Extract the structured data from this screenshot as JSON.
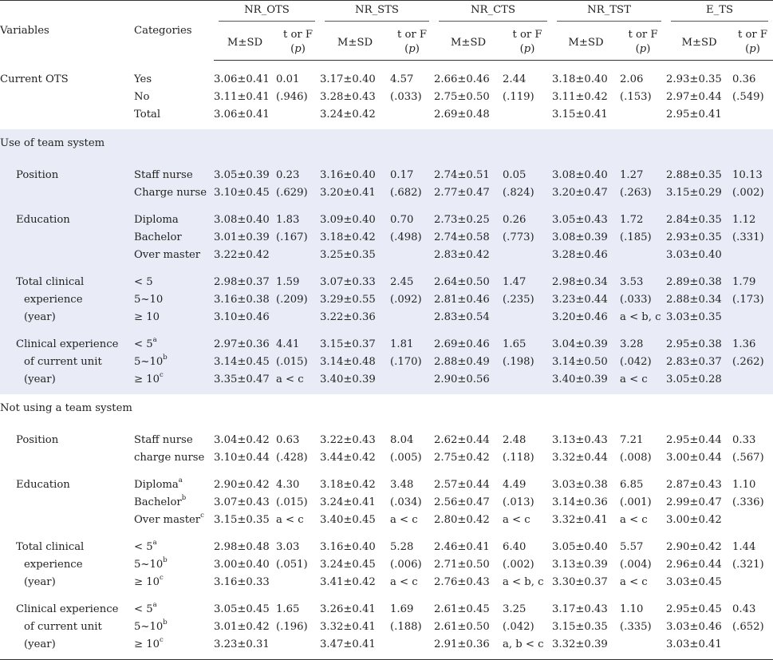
{
  "header": {
    "variables": "Variables",
    "categories": "Categories",
    "groups": [
      "NR_OTS",
      "NR_STS",
      "NR_CTS",
      "NR_TST",
      "E_TS"
    ],
    "msd": "M±SD",
    "tf_line1": "t or F",
    "tf_open": "(",
    "tf_p": "p",
    "tf_close": ")"
  },
  "sections": [
    {
      "title": "",
      "shaded": false,
      "groups": [
        {
          "variable": [
            "Current OTS"
          ],
          "indent": 0,
          "rows": [
            {
              "cat": "Yes",
              "sup": "",
              "vals": [
                [
                  "3.06±0.41",
                  "0.01"
                ],
                [
                  "3.17±0.40",
                  "4.57"
                ],
                [
                  "2.66±0.46",
                  "2.44"
                ],
                [
                  "3.18±0.40",
                  "2.06"
                ],
                [
                  "2.93±0.35",
                  "0.36"
                ]
              ]
            },
            {
              "cat": "No",
              "sup": "",
              "vals": [
                [
                  "3.11±0.41",
                  "(.946)"
                ],
                [
                  "3.28±0.43",
                  "(.033)"
                ],
                [
                  "2.75±0.50",
                  "(.119)"
                ],
                [
                  "3.11±0.42",
                  "(.153)"
                ],
                [
                  "2.97±0.44",
                  "(.549)"
                ]
              ]
            },
            {
              "cat": "Total",
              "sup": "",
              "vals": [
                [
                  "3.06±0.41",
                  ""
                ],
                [
                  "3.24±0.42",
                  ""
                ],
                [
                  "2.69±0.48",
                  ""
                ],
                [
                  "3.15±0.41",
                  ""
                ],
                [
                  "2.95±0.41",
                  ""
                ]
              ]
            }
          ]
        }
      ]
    },
    {
      "title": "Use of team system",
      "shaded": true,
      "groups": [
        {
          "variable": [
            "Position"
          ],
          "indent": 1,
          "rows": [
            {
              "cat": "Staff nurse",
              "sup": "",
              "vals": [
                [
                  "3.05±0.39",
                  "0.23"
                ],
                [
                  "3.16±0.40",
                  "0.17"
                ],
                [
                  "2.74±0.51",
                  "0.05"
                ],
                [
                  "3.08±0.40",
                  "1.27"
                ],
                [
                  "2.88±0.35",
                  "10.13"
                ]
              ]
            },
            {
              "cat": "Charge nurse",
              "sup": "",
              "vals": [
                [
                  "3.10±0.45",
                  "(.629)"
                ],
                [
                  "3.20±0.41",
                  "(.682)"
                ],
                [
                  "2.77±0.47",
                  "(.824)"
                ],
                [
                  "3.20±0.47",
                  "(.263)"
                ],
                [
                  "3.15±0.29",
                  "(.002)"
                ]
              ]
            }
          ]
        },
        {
          "variable": [
            "Education"
          ],
          "indent": 1,
          "rows": [
            {
              "cat": "Diploma",
              "sup": "",
              "vals": [
                [
                  "3.08±0.40",
                  "1.83"
                ],
                [
                  "3.09±0.40",
                  "0.70"
                ],
                [
                  "2.73±0.25",
                  "0.26"
                ],
                [
                  "3.05±0.43",
                  "1.72"
                ],
                [
                  "2.84±0.35",
                  "1.12"
                ]
              ]
            },
            {
              "cat": "Bachelor",
              "sup": "",
              "vals": [
                [
                  "3.01±0.39",
                  "(.167)"
                ],
                [
                  "3.18±0.42",
                  "(.498)"
                ],
                [
                  "2.74±0.58",
                  "(.773)"
                ],
                [
                  "3.08±0.39",
                  "(.185)"
                ],
                [
                  "2.93±0.35",
                  "(.331)"
                ]
              ]
            },
            {
              "cat": "Over master",
              "sup": "",
              "vals": [
                [
                  "3.22±0.42",
                  ""
                ],
                [
                  "3.25±0.35",
                  ""
                ],
                [
                  "2.83±0.42",
                  ""
                ],
                [
                  "3.28±0.46",
                  ""
                ],
                [
                  "3.03±0.40",
                  ""
                ]
              ]
            }
          ]
        },
        {
          "variable": [
            "Total clinical",
            "experience",
            "(year)"
          ],
          "indent": 1,
          "rows": [
            {
              "cat": "< 5",
              "sup": "",
              "vals": [
                [
                  "2.98±0.37",
                  "1.59"
                ],
                [
                  "3.07±0.33",
                  "2.45"
                ],
                [
                  "2.64±0.50",
                  "1.47"
                ],
                [
                  "2.98±0.34",
                  "3.53"
                ],
                [
                  "2.89±0.38",
                  "1.79"
                ]
              ]
            },
            {
              "cat": "5~10",
              "sup": "",
              "vals": [
                [
                  "3.16±0.38",
                  "(.209)"
                ],
                [
                  "3.29±0.55",
                  "(.092)"
                ],
                [
                  "2.81±0.46",
                  "(.235)"
                ],
                [
                  "3.23±0.44",
                  "(.033)"
                ],
                [
                  "2.88±0.34",
                  "(.173)"
                ]
              ]
            },
            {
              "cat": "≥ 10",
              "sup": "",
              "vals": [
                [
                  "3.10±0.46",
                  ""
                ],
                [
                  "3.22±0.36",
                  ""
                ],
                [
                  "2.83±0.54",
                  ""
                ],
                [
                  "3.20±0.46",
                  "a < b, c"
                ],
                [
                  "3.03±0.35",
                  ""
                ]
              ]
            }
          ]
        },
        {
          "variable": [
            "Clinical experience",
            "of current unit",
            "(year)"
          ],
          "indent": 1,
          "rows": [
            {
              "cat": "< 5",
              "sup": "a",
              "vals": [
                [
                  "2.97±0.36",
                  "4.41"
                ],
                [
                  "3.15±0.37",
                  "1.81"
                ],
                [
                  "2.69±0.46",
                  "1.65"
                ],
                [
                  "3.04±0.39",
                  "3.28"
                ],
                [
                  "2.95±0.38",
                  "1.36"
                ]
              ]
            },
            {
              "cat": "5~10",
              "sup": "b",
              "vals": [
                [
                  "3.14±0.45",
                  "(.015)"
                ],
                [
                  "3.14±0.48",
                  "(.170)"
                ],
                [
                  "2.88±0.49",
                  "(.198)"
                ],
                [
                  "3.14±0.50",
                  "(.042)"
                ],
                [
                  "2.83±0.37",
                  "(.262)"
                ]
              ]
            },
            {
              "cat": "≥ 10",
              "sup": "c",
              "vals": [
                [
                  "3.35±0.47",
                  "a < c"
                ],
                [
                  "3.40±0.39",
                  ""
                ],
                [
                  "2.90±0.56",
                  ""
                ],
                [
                  "3.40±0.39",
                  "a < c"
                ],
                [
                  "3.05±0.28",
                  ""
                ]
              ]
            }
          ]
        }
      ]
    },
    {
      "title": "Not using a team system",
      "shaded": false,
      "groups": [
        {
          "variable": [
            "Position"
          ],
          "indent": 1,
          "rows": [
            {
              "cat": "Staff nurse",
              "sup": "",
              "vals": [
                [
                  "3.04±0.42",
                  "0.63"
                ],
                [
                  "3.22±0.43",
                  "8.04"
                ],
                [
                  "2.62±0.44",
                  "2.48"
                ],
                [
                  "3.13±0.43",
                  "7.21"
                ],
                [
                  "2.95±0.44",
                  "0.33"
                ]
              ]
            },
            {
              "cat": "charge nurse",
              "sup": "",
              "vals": [
                [
                  "3.10±0.44",
                  "(.428)"
                ],
                [
                  "3.44±0.42",
                  "(.005)"
                ],
                [
                  "2.75±0.42",
                  "(.118)"
                ],
                [
                  "3.32±0.44",
                  "(.008)"
                ],
                [
                  "3.00±0.44",
                  "(.567)"
                ]
              ]
            }
          ]
        },
        {
          "variable": [
            "Education"
          ],
          "indent": 1,
          "rows": [
            {
              "cat": "Diploma",
              "sup": "a",
              "vals": [
                [
                  "2.90±0.42",
                  "4.30"
                ],
                [
                  "3.18±0.42",
                  "3.48"
                ],
                [
                  "2.57±0.44",
                  "4.49"
                ],
                [
                  "3.03±0.38",
                  "6.85"
                ],
                [
                  "2.87±0.43",
                  "1.10"
                ]
              ]
            },
            {
              "cat": "Bachelor",
              "sup": "b",
              "vals": [
                [
                  "3.07±0.43",
                  "(.015)"
                ],
                [
                  "3.24±0.41",
                  "(.034)"
                ],
                [
                  "2.56±0.47",
                  "(.013)"
                ],
                [
                  "3.14±0.36",
                  "(.001)"
                ],
                [
                  "2.99±0.47",
                  "(.336)"
                ]
              ]
            },
            {
              "cat": "Over master",
              "sup": "c",
              "vals": [
                [
                  "3.15±0.35",
                  "a < c"
                ],
                [
                  "3.40±0.45",
                  "a < c"
                ],
                [
                  "2.80±0.42",
                  "a < c"
                ],
                [
                  "3.32±0.41",
                  "a < c"
                ],
                [
                  "3.00±0.42",
                  ""
                ]
              ]
            }
          ]
        },
        {
          "variable": [
            "Total clinical",
            "experience",
            "(year)"
          ],
          "indent": 1,
          "rows": [
            {
              "cat": "< 5",
              "sup": "a",
              "vals": [
                [
                  "2.98±0.48",
                  "3.03"
                ],
                [
                  "3.16±0.40",
                  "5.28"
                ],
                [
                  "2.46±0.41",
                  "6.40"
                ],
                [
                  "3.05±0.40",
                  "5.57"
                ],
                [
                  "2.90±0.42",
                  "1.44"
                ]
              ]
            },
            {
              "cat": "5~10",
              "sup": "b",
              "vals": [
                [
                  "3.00±0.40",
                  "(.051)"
                ],
                [
                  "3.24±0.45",
                  "(.006)"
                ],
                [
                  "2.71±0.50",
                  "(.002)"
                ],
                [
                  "3.13±0.39",
                  "(.004)"
                ],
                [
                  "2.96±0.44",
                  "(.321)"
                ]
              ]
            },
            {
              "cat": "≥ 10",
              "sup": "c",
              "vals": [
                [
                  "3.16±0.33",
                  ""
                ],
                [
                  "3.41±0.42",
                  "a < c"
                ],
                [
                  "2.76±0.43",
                  "a < b, c"
                ],
                [
                  "3.30±0.37",
                  "a < c"
                ],
                [
                  "3.03±0.45",
                  ""
                ]
              ]
            }
          ]
        },
        {
          "variable": [
            "Clinical experience",
            "of current unit",
            "(year)"
          ],
          "indent": 1,
          "rows": [
            {
              "cat": "< 5",
              "sup": "a",
              "vals": [
                [
                  "3.05±0.45",
                  "1.65"
                ],
                [
                  "3.26±0.41",
                  "1.69"
                ],
                [
                  "2.61±0.45",
                  "3.25"
                ],
                [
                  "3.17±0.43",
                  "1.10"
                ],
                [
                  "2.95±0.45",
                  "0.43"
                ]
              ]
            },
            {
              "cat": "5~10",
              "sup": "b",
              "vals": [
                [
                  "3.01±0.42",
                  "(.196)"
                ],
                [
                  "3.32±0.41",
                  "(.188)"
                ],
                [
                  "2.61±0.50",
                  "(.042)"
                ],
                [
                  "3.15±0.35",
                  "(.335)"
                ],
                [
                  "3.03±0.46",
                  "(.652)"
                ]
              ]
            },
            {
              "cat": "≥ 10",
              "sup": "c",
              "vals": [
                [
                  "3.23±0.31",
                  ""
                ],
                [
                  "3.47±0.41",
                  ""
                ],
                [
                  "2.91±0.36",
                  "a, b < c"
                ],
                [
                  "3.32±0.39",
                  ""
                ],
                [
                  "3.03±0.41",
                  ""
                ]
              ]
            }
          ]
        }
      ]
    }
  ]
}
